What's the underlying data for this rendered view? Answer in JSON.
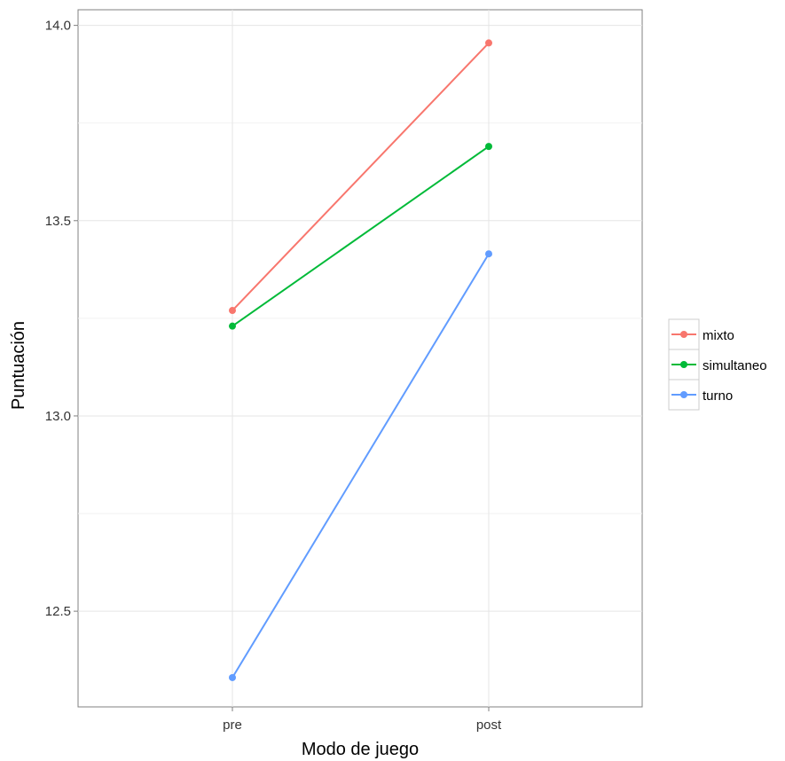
{
  "chart_data": {
    "type": "line",
    "categories": [
      "pre",
      "post"
    ],
    "series": [
      {
        "name": "mixto",
        "color": "#F8766D",
        "values": [
          13.27,
          13.955
        ]
      },
      {
        "name": "simultaneo",
        "color": "#00BA38",
        "values": [
          13.23,
          13.69
        ]
      },
      {
        "name": "turno",
        "color": "#619CFF",
        "values": [
          12.33,
          13.415
        ]
      }
    ],
    "xlabel": "Modo de juego",
    "ylabel": "Puntuación",
    "ylim": [
      12.255,
      14.04
    ],
    "yticks": [
      12.5,
      13.0,
      13.5,
      14.0
    ],
    "ytick_labels": [
      "12.5",
      "13.0",
      "13.5",
      "14.0"
    ],
    "grid": true,
    "legend_position": "right"
  }
}
